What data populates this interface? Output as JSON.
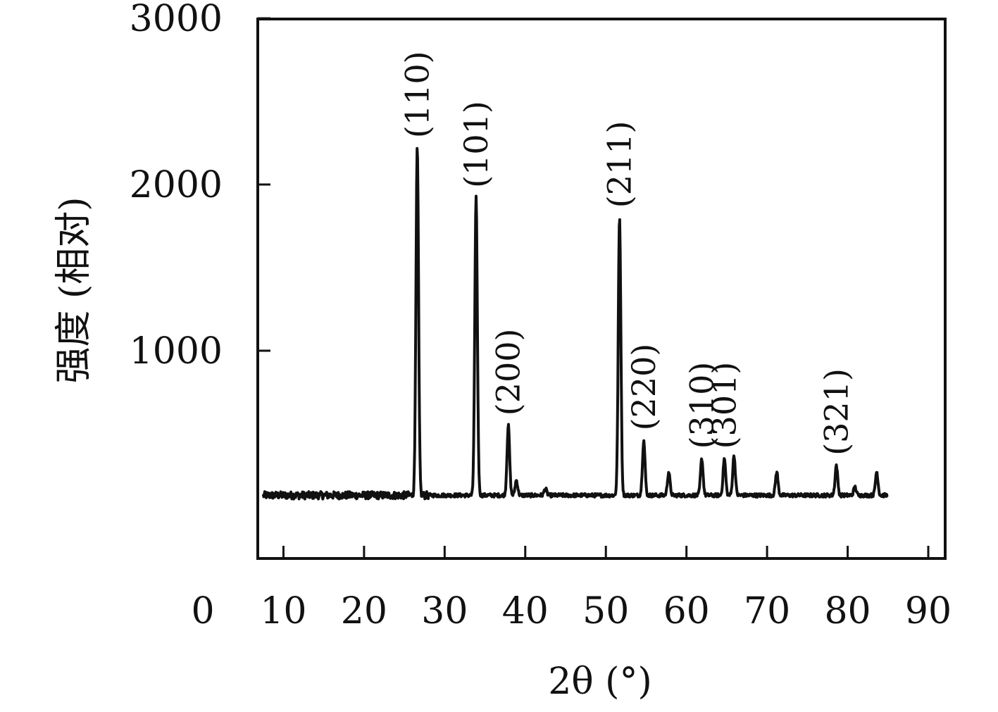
{
  "chart_data": {
    "type": "line",
    "title": "",
    "xlabel": "2θ (°)",
    "ylabel": "强度 (相对)",
    "xlim": [
      0,
      90
    ],
    "ylim": [
      0,
      3000
    ],
    "x_ticks": [
      0,
      10,
      20,
      30,
      40,
      50,
      60,
      70,
      80,
      90
    ],
    "y_ticks": [
      1000,
      2000,
      3000
    ],
    "x_tick_labels": [
      "0",
      "10",
      "20",
      "30",
      "40",
      "50",
      "60",
      "70",
      "80",
      "90"
    ],
    "y_tick_labels": [
      "1000",
      "2000",
      "3000"
    ],
    "grid": false,
    "legend": "none",
    "series": [
      {
        "color": "#111111",
        "baseline": 130,
        "x_range": [
          7.5,
          85
        ],
        "peaks": [
          {
            "x": 26.6,
            "y": 2220,
            "label": "(110)"
          },
          {
            "x": 33.9,
            "y": 1920,
            "label": "(101)"
          },
          {
            "x": 37.9,
            "y": 550,
            "label": "(200)"
          },
          {
            "x": 38.9,
            "y": 220,
            "label": ""
          },
          {
            "x": 42.5,
            "y": 170,
            "label": ""
          },
          {
            "x": 51.7,
            "y": 1800,
            "label": "(211)"
          },
          {
            "x": 54.7,
            "y": 460,
            "label": "(220)"
          },
          {
            "x": 57.8,
            "y": 270,
            "label": ""
          },
          {
            "x": 61.9,
            "y": 350,
            "label": "(310)"
          },
          {
            "x": 64.7,
            "y": 350,
            "label": "(301)"
          },
          {
            "x": 65.9,
            "y": 370,
            "label": ""
          },
          {
            "x": 71.2,
            "y": 270,
            "label": ""
          },
          {
            "x": 78.6,
            "y": 310,
            "label": "(321)"
          },
          {
            "x": 80.9,
            "y": 180,
            "label": ""
          },
          {
            "x": 83.6,
            "y": 270,
            "label": ""
          }
        ]
      }
    ]
  }
}
